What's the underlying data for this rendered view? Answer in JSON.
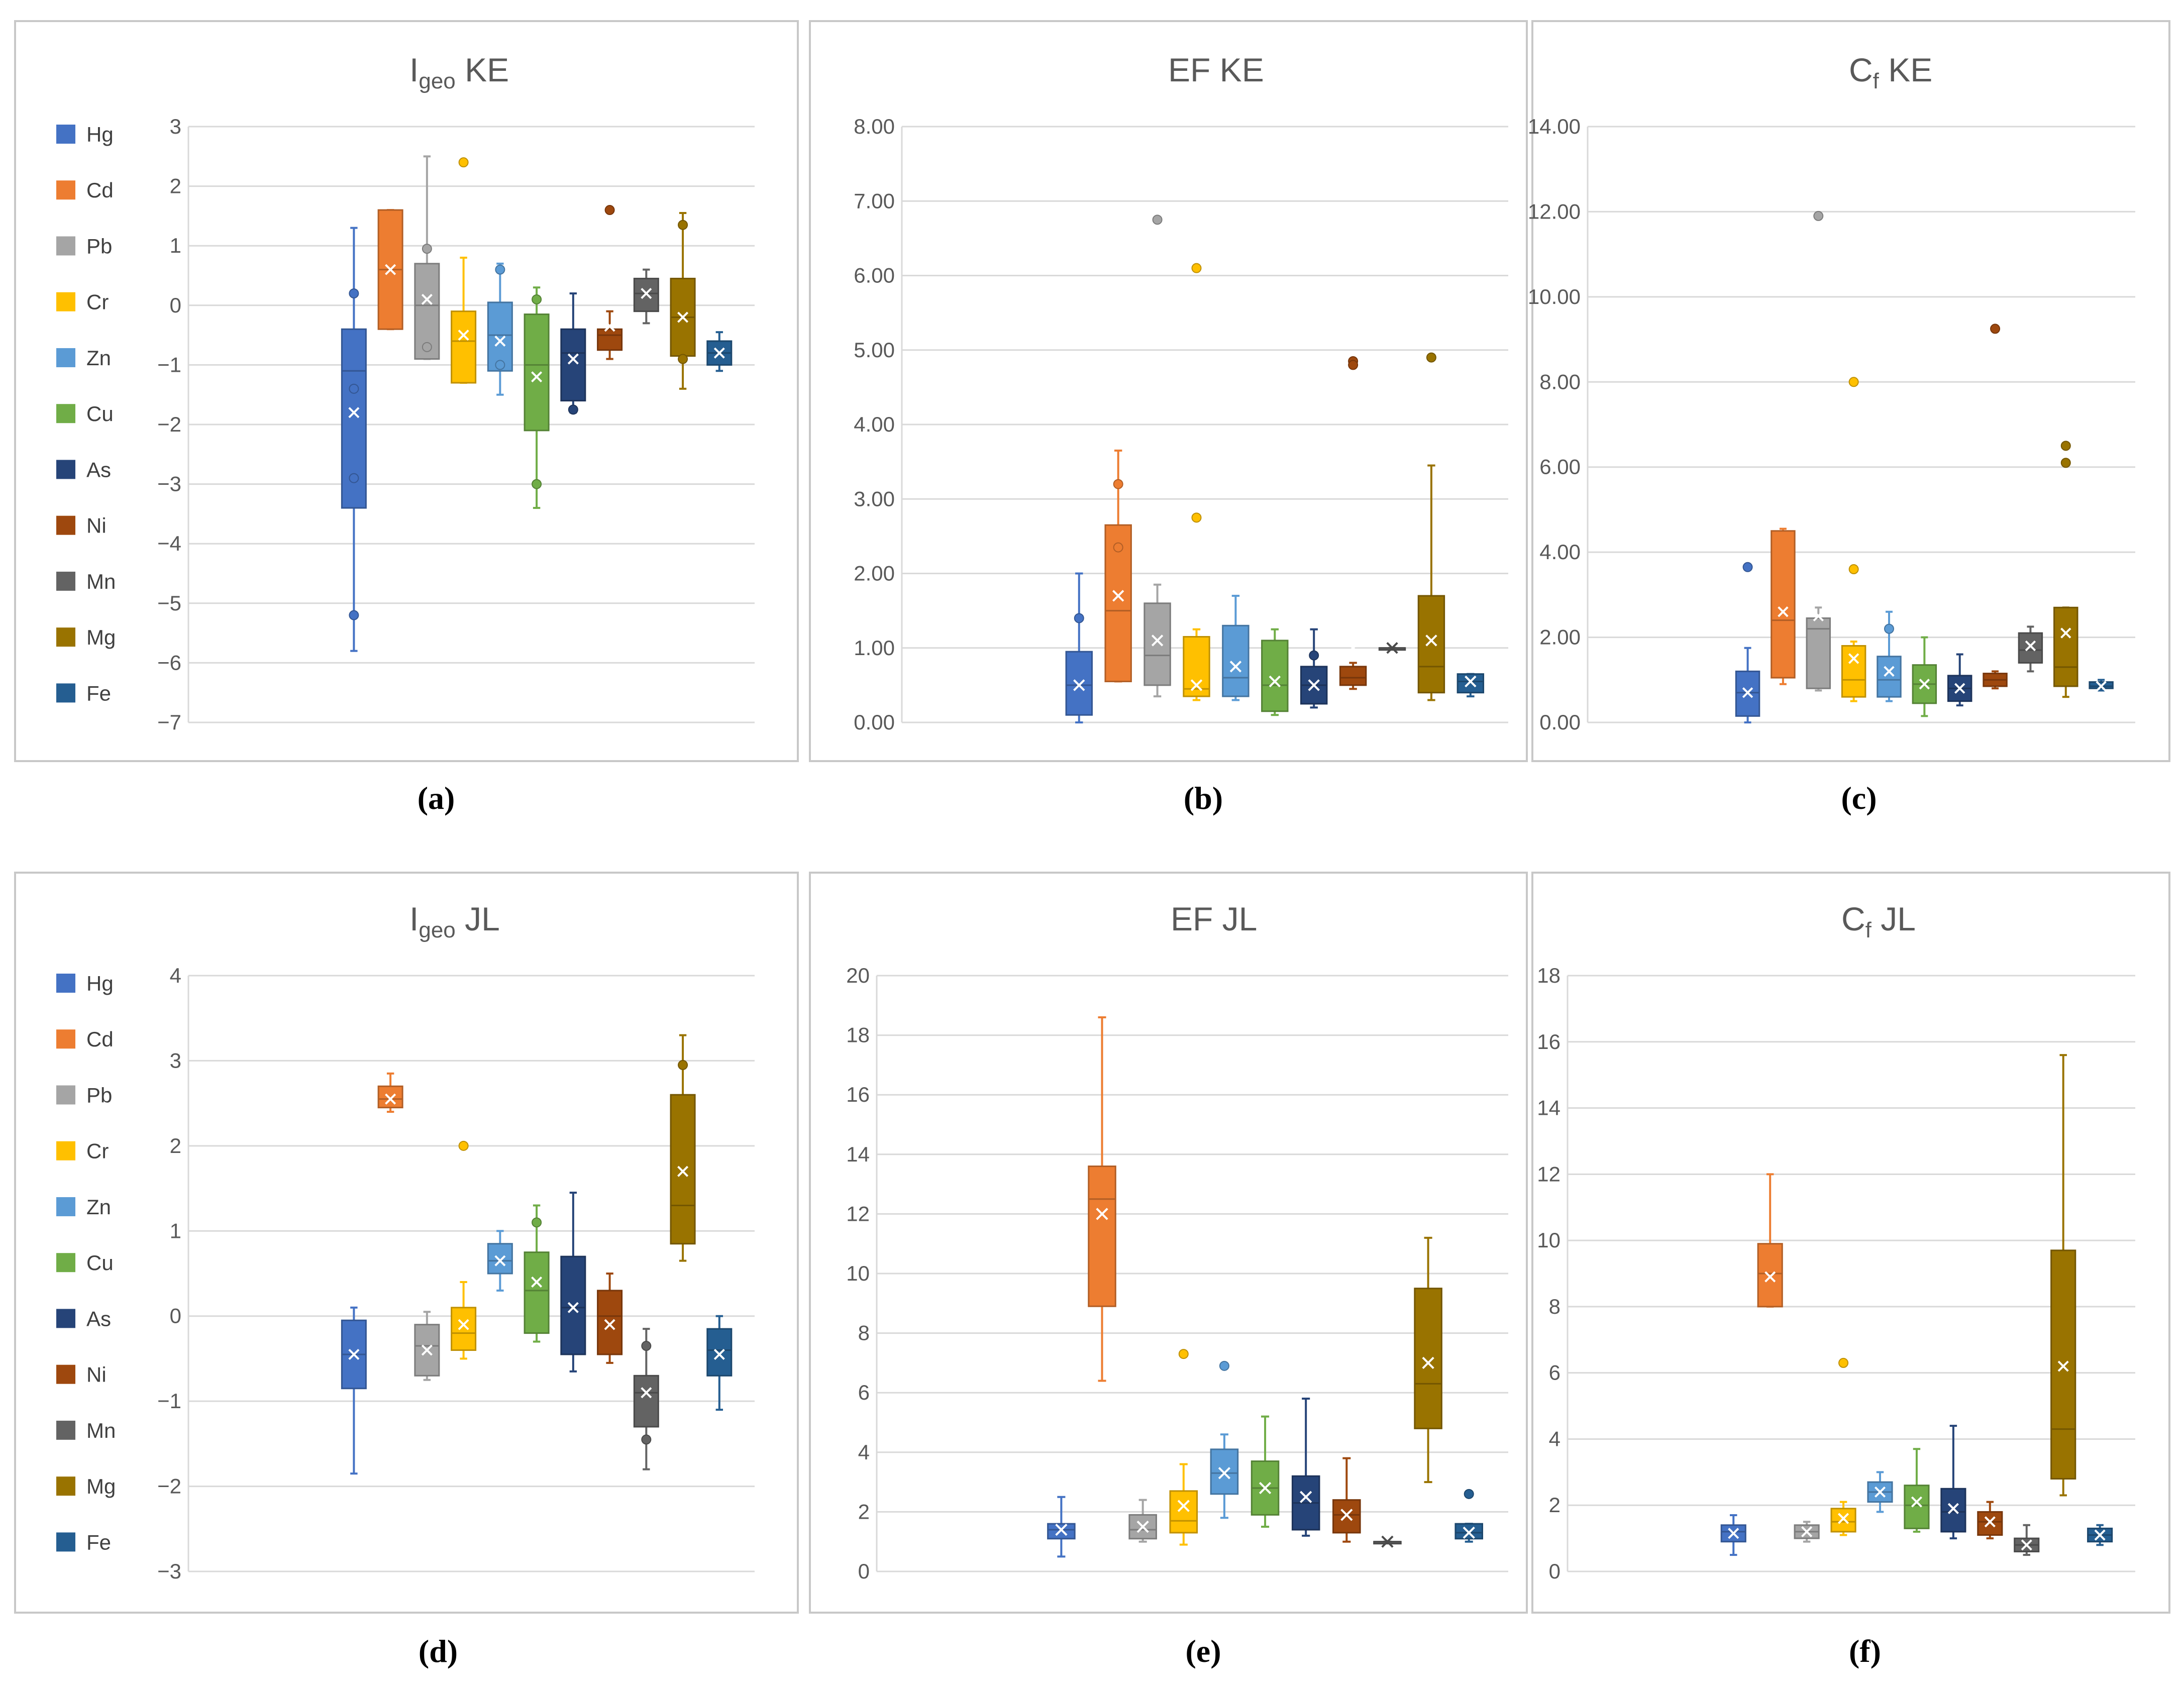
{
  "element_order": [
    "Hg",
    "Cd",
    "Pb",
    "Cr",
    "Zn",
    "Cu",
    "As",
    "Ni",
    "Mn",
    "Mg",
    "Fe"
  ],
  "colors": {
    "Hg": "#4472c4",
    "Cd": "#ed7d31",
    "Pb": "#a5a5a5",
    "Cr": "#ffc000",
    "Zn": "#5b9bd5",
    "Cu": "#70ad47",
    "As": "#264478",
    "Ni": "#9e480e",
    "Mn": "#636363",
    "Mg": "#997300",
    "Fe": "#255e91"
  },
  "chart_data": [
    {
      "id": "a",
      "type": "box",
      "caption": "(a)",
      "title": {
        "main": "I",
        "sub": "geo",
        "rest": " KE"
      },
      "ylim": [
        -7,
        3
      ],
      "ticks": [
        3,
        2,
        1,
        0,
        -1,
        -2,
        -3,
        -4,
        -5,
        -6,
        -7
      ],
      "decimals": 0,
      "grid": true,
      "legend": "left",
      "legend_entries": [
        "Hg",
        "Cd",
        "Pb",
        "Cr",
        "Zn",
        "Cu",
        "As",
        "Ni",
        "Mn",
        "Mg",
        "Fe"
      ],
      "series": [
        {
          "name": "Hg",
          "min": -5.8,
          "q1": -3.4,
          "median": -1.1,
          "q3": -0.4,
          "max": 1.3,
          "mean": -1.8,
          "outliers": [
            -5.2,
            0.2,
            -2.9,
            -1.4
          ]
        },
        {
          "name": "Cd",
          "min": -0.4,
          "q1": -0.4,
          "median": 0.6,
          "q3": 1.6,
          "max": 1.6,
          "mean": 0.6,
          "outliers": []
        },
        {
          "name": "Pb",
          "min": -0.9,
          "q1": -0.9,
          "median": 0.0,
          "q3": 0.7,
          "max": 2.5,
          "mean": 0.1,
          "outliers": [
            0.95,
            -0.7
          ]
        },
        {
          "name": "Cr",
          "min": -1.3,
          "q1": -1.3,
          "median": -0.6,
          "q3": -0.1,
          "max": 0.8,
          "mean": -0.5,
          "outliers": [
            2.4
          ]
        },
        {
          "name": "Zn",
          "min": -1.5,
          "q1": -1.1,
          "median": -0.5,
          "q3": 0.05,
          "max": 0.7,
          "mean": -0.6,
          "outliers": [
            0.6,
            -1.0
          ]
        },
        {
          "name": "Cu",
          "min": -3.4,
          "q1": -2.1,
          "median": -1.0,
          "q3": -0.15,
          "max": 0.3,
          "mean": -1.2,
          "outliers": [
            -3.0,
            0.1
          ]
        },
        {
          "name": "As",
          "min": -1.8,
          "q1": -1.6,
          "median": -0.8,
          "q3": -0.4,
          "max": 0.2,
          "mean": -0.9,
          "outliers": [
            -1.75
          ]
        },
        {
          "name": "Ni",
          "min": -0.9,
          "q1": -0.75,
          "median": -0.5,
          "q3": -0.4,
          "max": -0.1,
          "mean": -0.35,
          "outliers": [
            1.6
          ]
        },
        {
          "name": "Mn",
          "min": -0.3,
          "q1": -0.1,
          "median": 0.2,
          "q3": 0.45,
          "max": 0.6,
          "mean": 0.2,
          "outliers": []
        },
        {
          "name": "Mg",
          "min": -1.4,
          "q1": -0.85,
          "median": -0.2,
          "q3": 0.45,
          "max": 1.55,
          "mean": -0.2,
          "outliers": [
            1.35,
            -0.9
          ]
        },
        {
          "name": "Fe",
          "min": -1.1,
          "q1": -1.0,
          "median": -0.8,
          "q3": -0.6,
          "max": -0.45,
          "mean": -0.8,
          "outliers": []
        }
      ]
    },
    {
      "id": "b",
      "type": "box",
      "caption": "(b)",
      "title": {
        "main": "EF KE",
        "sub": "",
        "rest": ""
      },
      "ylim": [
        0,
        8
      ],
      "ticks": [
        8,
        7,
        6,
        5,
        4,
        3,
        2,
        1,
        0
      ],
      "decimals": 2,
      "grid": true,
      "legend": "none",
      "series": [
        {
          "name": "Hg",
          "min": 0.0,
          "q1": 0.1,
          "median": 0.5,
          "q3": 0.95,
          "max": 2.0,
          "mean": 0.5,
          "outliers": [
            1.4
          ]
        },
        {
          "name": "Cd",
          "min": 0.55,
          "q1": 0.55,
          "median": 1.5,
          "q3": 2.65,
          "max": 3.65,
          "mean": 1.7,
          "outliers": [
            3.2,
            2.35
          ]
        },
        {
          "name": "Pb",
          "min": 0.35,
          "q1": 0.5,
          "median": 0.9,
          "q3": 1.6,
          "max": 1.85,
          "mean": 1.1,
          "outliers": [
            6.75
          ]
        },
        {
          "name": "Cr",
          "min": 0.3,
          "q1": 0.35,
          "median": 0.45,
          "q3": 1.15,
          "max": 1.25,
          "mean": 0.5,
          "outliers": [
            6.1,
            2.75
          ]
        },
        {
          "name": "Zn",
          "min": 0.3,
          "q1": 0.35,
          "median": 0.6,
          "q3": 1.3,
          "max": 1.7,
          "mean": 0.75,
          "outliers": []
        },
        {
          "name": "Cu",
          "min": 0.1,
          "q1": 0.15,
          "median": 0.5,
          "q3": 1.1,
          "max": 1.25,
          "mean": 0.55,
          "outliers": []
        },
        {
          "name": "As",
          "min": 0.2,
          "q1": 0.25,
          "median": 0.5,
          "q3": 0.75,
          "max": 1.25,
          "mean": 0.5,
          "outliers": [
            0.9
          ]
        },
        {
          "name": "Ni",
          "min": 0.45,
          "q1": 0.5,
          "median": 0.6,
          "q3": 0.75,
          "max": 0.8,
          "mean": 1.0,
          "outliers": [
            4.85,
            4.8
          ]
        },
        {
          "name": "Mn",
          "min": 1.0,
          "q1": 1.0,
          "median": 1.0,
          "q3": 1.0,
          "max": 1.0,
          "mean": 1.0,
          "outliers": []
        },
        {
          "name": "Mg",
          "min": 0.3,
          "q1": 0.4,
          "median": 0.75,
          "q3": 1.7,
          "max": 3.45,
          "mean": 1.1,
          "outliers": [
            4.9
          ]
        },
        {
          "name": "Fe",
          "min": 0.35,
          "q1": 0.4,
          "median": 0.55,
          "q3": 0.65,
          "max": 0.65,
          "mean": 0.55,
          "outliers": []
        }
      ]
    },
    {
      "id": "c",
      "type": "box",
      "caption": "(c)",
      "title": {
        "main": "C",
        "sub": "f",
        "rest": " KE"
      },
      "ylim": [
        0,
        14
      ],
      "ticks": [
        14,
        12,
        10,
        8,
        6,
        4,
        2,
        0
      ],
      "decimals": 2,
      "grid": true,
      "legend": "none",
      "series": [
        {
          "name": "Hg",
          "min": 0.0,
          "q1": 0.15,
          "median": 0.7,
          "q3": 1.2,
          "max": 1.75,
          "mean": 0.7,
          "outliers": [
            3.65
          ]
        },
        {
          "name": "Cd",
          "min": 0.9,
          "q1": 1.05,
          "median": 2.4,
          "q3": 4.5,
          "max": 4.55,
          "mean": 2.6,
          "outliers": []
        },
        {
          "name": "Pb",
          "min": 0.75,
          "q1": 0.8,
          "median": 2.2,
          "q3": 2.45,
          "max": 2.7,
          "mean": 2.5,
          "outliers": [
            11.9
          ]
        },
        {
          "name": "Cr",
          "min": 0.5,
          "q1": 0.6,
          "median": 1.0,
          "q3": 1.8,
          "max": 1.9,
          "mean": 1.5,
          "outliers": [
            8.0,
            3.6
          ]
        },
        {
          "name": "Zn",
          "min": 0.5,
          "q1": 0.6,
          "median": 1.0,
          "q3": 1.55,
          "max": 2.6,
          "mean": 1.2,
          "outliers": [
            2.2
          ]
        },
        {
          "name": "Cu",
          "min": 0.15,
          "q1": 0.45,
          "median": 0.9,
          "q3": 1.35,
          "max": 2.0,
          "mean": 0.9,
          "outliers": []
        },
        {
          "name": "As",
          "min": 0.4,
          "q1": 0.5,
          "median": 0.8,
          "q3": 1.1,
          "max": 1.6,
          "mean": 0.8,
          "outliers": []
        },
        {
          "name": "Ni",
          "min": 0.8,
          "q1": 0.85,
          "median": 1.0,
          "q3": 1.15,
          "max": 1.2,
          "mean": 1.8,
          "outliers": [
            9.25
          ]
        },
        {
          "name": "Mn",
          "min": 1.2,
          "q1": 1.4,
          "median": 1.7,
          "q3": 2.1,
          "max": 2.25,
          "mean": 1.8,
          "outliers": []
        },
        {
          "name": "Mg",
          "min": 0.6,
          "q1": 0.85,
          "median": 1.3,
          "q3": 2.7,
          "max": 2.7,
          "mean": 2.1,
          "outliers": [
            6.5,
            6.1
          ]
        },
        {
          "name": "Fe",
          "min": 0.75,
          "q1": 0.8,
          "median": 0.85,
          "q3": 0.95,
          "max": 1.0,
          "mean": 0.85,
          "outliers": []
        }
      ]
    },
    {
      "id": "d",
      "type": "box",
      "caption": "(d)",
      "title": {
        "main": "I",
        "sub": "geo",
        "rest": " JL"
      },
      "ylim": [
        -3,
        4
      ],
      "ticks": [
        4,
        3,
        2,
        1,
        0,
        -1,
        -2,
        -3
      ],
      "decimals": 0,
      "grid": true,
      "legend": "left",
      "legend_entries": [
        "Hg",
        "Cd",
        "Pb",
        "Cr",
        "Zn",
        "Cu",
        "As",
        "Ni",
        "Mn",
        "Mg",
        "Fe"
      ],
      "series": [
        {
          "name": "Hg",
          "min": -1.85,
          "q1": -0.85,
          "median": -0.45,
          "q3": -0.05,
          "max": 0.1,
          "mean": -0.45,
          "outliers": []
        },
        {
          "name": "Cd",
          "min": 2.4,
          "q1": 2.45,
          "median": 2.55,
          "q3": 2.7,
          "max": 2.85,
          "mean": 2.55,
          "outliers": []
        },
        {
          "name": "Pb",
          "min": -0.75,
          "q1": -0.7,
          "median": -0.35,
          "q3": -0.1,
          "max": 0.05,
          "mean": -0.4,
          "outliers": []
        },
        {
          "name": "Cr",
          "min": -0.5,
          "q1": -0.4,
          "median": -0.2,
          "q3": 0.1,
          "max": 0.4,
          "mean": -0.1,
          "outliers": [
            2.0
          ]
        },
        {
          "name": "Zn",
          "min": 0.3,
          "q1": 0.5,
          "median": 0.65,
          "q3": 0.85,
          "max": 1.0,
          "mean": 0.65,
          "outliers": []
        },
        {
          "name": "Cu",
          "min": -0.3,
          "q1": -0.2,
          "median": 0.3,
          "q3": 0.75,
          "max": 1.3,
          "mean": 0.4,
          "outliers": [
            1.1
          ]
        },
        {
          "name": "As",
          "min": -0.65,
          "q1": -0.45,
          "median": 0.1,
          "q3": 0.7,
          "max": 1.45,
          "mean": 0.1,
          "outliers": []
        },
        {
          "name": "Ni",
          "min": -0.55,
          "q1": -0.45,
          "median": 0.0,
          "q3": 0.3,
          "max": 0.5,
          "mean": -0.1,
          "outliers": []
        },
        {
          "name": "Mn",
          "min": -1.8,
          "q1": -1.3,
          "median": -0.9,
          "q3": -0.7,
          "max": -0.15,
          "mean": -0.9,
          "outliers": [
            -0.35,
            -1.45
          ]
        },
        {
          "name": "Mg",
          "min": 0.65,
          "q1": 0.85,
          "median": 1.3,
          "q3": 2.6,
          "max": 3.3,
          "mean": 1.7,
          "outliers": [
            2.95
          ]
        },
        {
          "name": "Fe",
          "min": -1.1,
          "q1": -0.7,
          "median": -0.4,
          "q3": -0.15,
          "max": 0.0,
          "mean": -0.45,
          "outliers": []
        }
      ]
    },
    {
      "id": "e",
      "type": "box",
      "caption": "(e)",
      "title": {
        "main": "EF JL",
        "sub": "",
        "rest": ""
      },
      "ylim": [
        0,
        20
      ],
      "ticks": [
        20,
        18,
        16,
        14,
        12,
        10,
        8,
        6,
        4,
        2,
        0
      ],
      "decimals": 0,
      "grid": true,
      "legend": "none",
      "series": [
        {
          "name": "Hg",
          "min": 0.5,
          "q1": 1.1,
          "median": 1.4,
          "q3": 1.6,
          "max": 2.5,
          "mean": 1.4,
          "outliers": []
        },
        {
          "name": "Cd",
          "min": 6.4,
          "q1": 8.9,
          "median": 12.5,
          "q3": 13.6,
          "max": 18.6,
          "mean": 12.0,
          "outliers": []
        },
        {
          "name": "Pb",
          "min": 1.0,
          "q1": 1.1,
          "median": 1.4,
          "q3": 1.9,
          "max": 2.4,
          "mean": 1.5,
          "outliers": []
        },
        {
          "name": "Cr",
          "min": 0.9,
          "q1": 1.3,
          "median": 1.7,
          "q3": 2.7,
          "max": 3.6,
          "mean": 2.2,
          "outliers": [
            7.3
          ]
        },
        {
          "name": "Zn",
          "min": 1.8,
          "q1": 2.6,
          "median": 3.3,
          "q3": 4.1,
          "max": 4.6,
          "mean": 3.3,
          "outliers": [
            6.9
          ]
        },
        {
          "name": "Cu",
          "min": 1.5,
          "q1": 1.9,
          "median": 2.8,
          "q3": 3.7,
          "max": 5.2,
          "mean": 2.8,
          "outliers": []
        },
        {
          "name": "As",
          "min": 1.2,
          "q1": 1.4,
          "median": 2.3,
          "q3": 3.2,
          "max": 5.8,
          "mean": 2.5,
          "outliers": []
        },
        {
          "name": "Ni",
          "min": 1.0,
          "q1": 1.3,
          "median": 1.9,
          "q3": 2.4,
          "max": 3.8,
          "mean": 1.9,
          "outliers": []
        },
        {
          "name": "Mn",
          "min": 1.0,
          "q1": 1.0,
          "median": 1.0,
          "q3": 1.0,
          "max": 1.0,
          "mean": 1.0,
          "outliers": []
        },
        {
          "name": "Mg",
          "min": 3.0,
          "q1": 4.8,
          "median": 6.3,
          "q3": 9.5,
          "max": 11.2,
          "mean": 7.0,
          "outliers": []
        },
        {
          "name": "Fe",
          "min": 1.0,
          "q1": 1.1,
          "median": 1.3,
          "q3": 1.6,
          "max": 1.6,
          "mean": 1.3,
          "outliers": [
            2.6
          ]
        }
      ]
    },
    {
      "id": "f",
      "type": "box",
      "caption": "(f)",
      "title": {
        "main": "C",
        "sub": "f",
        "rest": " JL"
      },
      "ylim": [
        0,
        18
      ],
      "ticks": [
        18,
        16,
        14,
        12,
        10,
        8,
        6,
        4,
        2,
        0
      ],
      "decimals": 0,
      "grid": true,
      "legend": "none",
      "series": [
        {
          "name": "Hg",
          "min": 0.5,
          "q1": 0.9,
          "median": 1.2,
          "q3": 1.4,
          "max": 1.7,
          "mean": 1.15,
          "outliers": []
        },
        {
          "name": "Cd",
          "min": 8.0,
          "q1": 8.0,
          "median": 9.0,
          "q3": 9.9,
          "max": 12.0,
          "mean": 8.9,
          "outliers": []
        },
        {
          "name": "Pb",
          "min": 0.9,
          "q1": 1.0,
          "median": 1.2,
          "q3": 1.4,
          "max": 1.5,
          "mean": 1.2,
          "outliers": []
        },
        {
          "name": "Cr",
          "min": 1.1,
          "q1": 1.2,
          "median": 1.5,
          "q3": 1.9,
          "max": 2.1,
          "mean": 1.6,
          "outliers": [
            6.3
          ]
        },
        {
          "name": "Zn",
          "min": 1.8,
          "q1": 2.1,
          "median": 2.4,
          "q3": 2.7,
          "max": 3.0,
          "mean": 2.4,
          "outliers": []
        },
        {
          "name": "Cu",
          "min": 1.2,
          "q1": 1.3,
          "median": 2.0,
          "q3": 2.6,
          "max": 3.7,
          "mean": 2.1,
          "outliers": []
        },
        {
          "name": "As",
          "min": 1.0,
          "q1": 1.2,
          "median": 1.8,
          "q3": 2.5,
          "max": 4.4,
          "mean": 1.9,
          "outliers": []
        },
        {
          "name": "Ni",
          "min": 1.0,
          "q1": 1.1,
          "median": 1.5,
          "q3": 1.8,
          "max": 2.1,
          "mean": 1.5,
          "outliers": []
        },
        {
          "name": "Mn",
          "min": 0.5,
          "q1": 0.6,
          "median": 0.8,
          "q3": 1.0,
          "max": 1.4,
          "mean": 0.8,
          "outliers": []
        },
        {
          "name": "Mg",
          "min": 2.3,
          "q1": 2.8,
          "median": 4.3,
          "q3": 9.7,
          "max": 15.6,
          "mean": 6.2,
          "outliers": []
        },
        {
          "name": "Fe",
          "min": 0.8,
          "q1": 0.9,
          "median": 1.1,
          "q3": 1.3,
          "max": 1.4,
          "mean": 1.1,
          "outliers": []
        }
      ]
    }
  ]
}
